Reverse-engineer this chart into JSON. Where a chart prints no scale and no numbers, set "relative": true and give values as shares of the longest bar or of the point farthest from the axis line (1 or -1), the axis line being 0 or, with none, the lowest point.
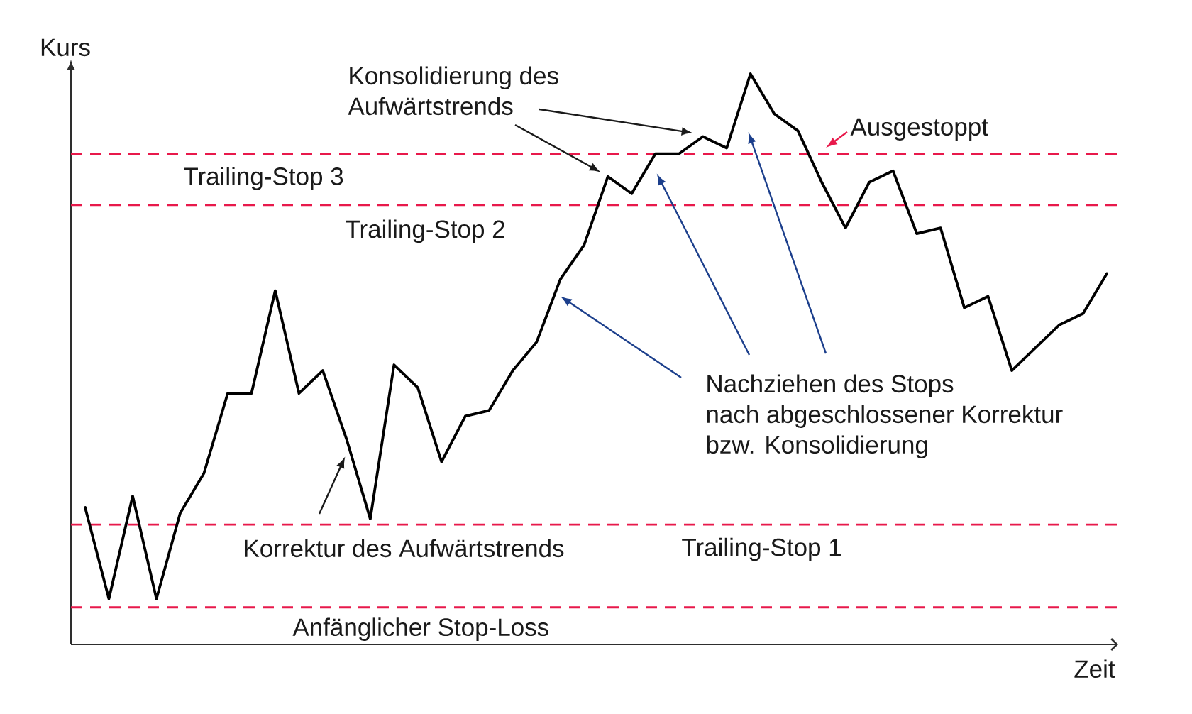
{
  "chart_data": {
    "type": "line",
    "relative": true,
    "xlabel": "Zeit",
    "ylabel": "Kurs",
    "categories": [
      null,
      null,
      null,
      null,
      null,
      null,
      null,
      null,
      null,
      null,
      null,
      null,
      null,
      null,
      null,
      null,
      null,
      null,
      null,
      null,
      null,
      null,
      null,
      null,
      null,
      null,
      null,
      null,
      null,
      null,
      null,
      null,
      null,
      null,
      null,
      null,
      null,
      null,
      null,
      null,
      null,
      null,
      null,
      null
    ],
    "values": [
      0.24,
      0.08,
      0.26,
      0.08,
      0.23,
      0.3,
      0.44,
      0.44,
      0.62,
      0.44,
      0.48,
      0.36,
      0.22,
      0.49,
      0.45,
      0.32,
      0.4,
      0.41,
      0.48,
      0.53,
      0.64,
      0.7,
      0.82,
      0.79,
      0.86,
      0.86,
      0.89,
      0.87,
      1,
      0.93,
      0.9,
      0.81,
      0.73,
      0.81,
      0.83,
      0.72,
      0.73,
      0.59,
      0.61,
      0.48,
      0.52,
      0.56,
      0.58,
      0.65
    ],
    "color": "#000000",
    "line_style": "solid",
    "ref_lines": [
      {
        "axis": "y",
        "value": 0.065,
        "label": "Anfänglicher Stop-Loss",
        "color": "#e8194b",
        "line_style": "dashed"
      },
      {
        "axis": "y",
        "value": 0.21,
        "label": "Trailing-Stop 1",
        "color": "#e8194b",
        "line_style": "dashed"
      },
      {
        "axis": "y",
        "value": 0.77,
        "label": "Trailing-Stop 2",
        "color": "#e8194b",
        "line_style": "dashed"
      },
      {
        "axis": "y",
        "value": 0.86,
        "label": "Trailing-Stop 3",
        "color": "#e8194b",
        "line_style": "dashed"
      }
    ],
    "annotations": [
      "Konsolidierung des\nAufwärtstrends",
      "Korrektur des Aufwärtstrends",
      "Nachziehen des Stops\nnach abgeschlossener Korrektur\nbzw. Konsolidierung",
      "Ausgestoppt"
    ]
  }
}
